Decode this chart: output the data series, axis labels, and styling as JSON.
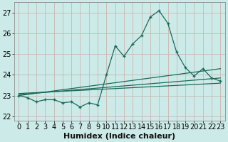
{
  "xlabel": "Humidex (Indice chaleur)",
  "bg_color": "#cceae8",
  "grid_color": "#c8b8b0",
  "line_color": "#1a6b5a",
  "xlim": [
    -0.5,
    23.5
  ],
  "ylim": [
    21.8,
    27.5
  ],
  "yticks": [
    22,
    23,
    24,
    25,
    26,
    27
  ],
  "xticks": [
    0,
    1,
    2,
    3,
    4,
    5,
    6,
    7,
    8,
    9,
    10,
    11,
    12,
    13,
    14,
    15,
    16,
    17,
    18,
    19,
    20,
    21,
    22,
    23
  ],
  "main_x": [
    0,
    1,
    2,
    3,
    4,
    5,
    6,
    7,
    8,
    9,
    10,
    11,
    12,
    13,
    14,
    15,
    16,
    17,
    18,
    19,
    20,
    21,
    22,
    23
  ],
  "main_y": [
    23.0,
    22.9,
    22.7,
    22.8,
    22.8,
    22.65,
    22.7,
    22.45,
    22.65,
    22.55,
    24.0,
    25.4,
    24.9,
    25.5,
    25.9,
    26.8,
    27.1,
    26.5,
    25.1,
    24.35,
    23.95,
    24.3,
    23.85,
    23.7
  ],
  "line2_x": [
    0,
    23
  ],
  "line2_y": [
    23.0,
    24.3
  ],
  "line3_x": [
    0,
    23
  ],
  "line3_y": [
    23.05,
    23.85
  ],
  "line4_x": [
    0,
    23
  ],
  "line4_y": [
    23.1,
    23.6
  ],
  "fontsize_label": 8,
  "fontsize_tick": 7
}
